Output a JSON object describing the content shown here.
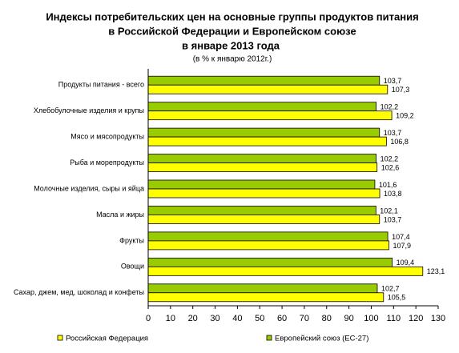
{
  "chart_data": {
    "type": "hbar",
    "title": [
      "Индексы потребительских цен на основные группы продуктов питания",
      "в Российской Федерации и Европейском союзе",
      "в январе 2013 года"
    ],
    "subtitle": "(в % к январю 2012г.)",
    "categories": [
      "Продукты питания - всего",
      "Хлебобулочные изделия и крупы",
      "Мясо и мясопродукты",
      "Рыба и морепродукты",
      "Молочные изделия, сыры и яйца",
      "Масла и жиры",
      "Фрукты",
      "Овощи",
      "Сахар, джем, мед, шоколад и конфеты"
    ],
    "series": [
      {
        "name": "Российская Федерация",
        "color": "#ffff00",
        "values": [
          107.3,
          109.2,
          106.8,
          102.6,
          103.8,
          103.7,
          107.9,
          123.1,
          105.5
        ],
        "value_labels": [
          "107,3",
          "109,2",
          "106,8",
          "102,6",
          "103,8",
          "103,7",
          "107,9",
          "123,1",
          "105,5"
        ]
      },
      {
        "name": "Европейский союз (ЕС-27)",
        "color": "#99cc00",
        "values": [
          103.7,
          102.2,
          103.7,
          102.2,
          101.6,
          102.1,
          107.4,
          109.4,
          102.7
        ],
        "value_labels": [
          "103,7",
          "102,2",
          "103,7",
          "102,2",
          "101,6",
          "102,1",
          "107,4",
          "109,4",
          "102,7"
        ]
      }
    ],
    "xlim": [
      0,
      130
    ],
    "xticks": [
      0,
      10,
      20,
      30,
      40,
      50,
      60,
      70,
      80,
      90,
      100,
      110,
      120,
      130
    ]
  }
}
